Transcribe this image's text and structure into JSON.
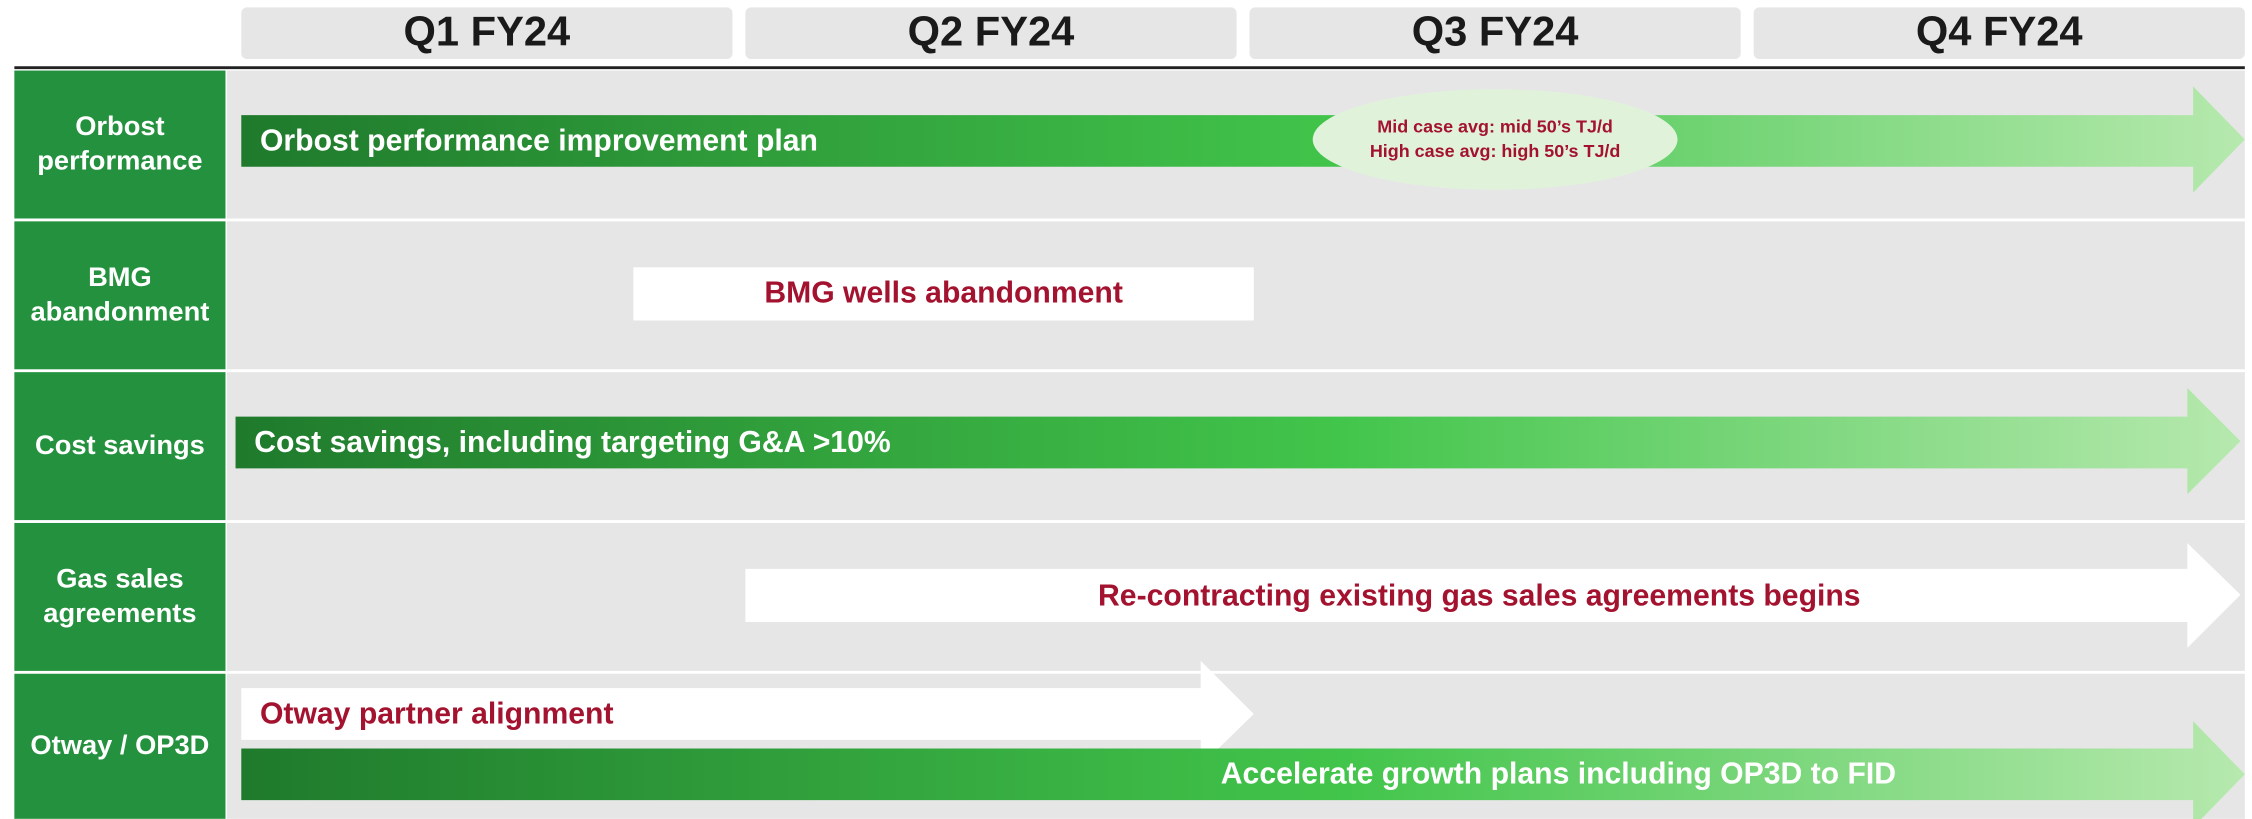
{
  "header": {
    "quarters": [
      "Q1 FY24",
      "Q2 FY24",
      "Q3 FY24",
      "Q4 FY24"
    ]
  },
  "rows": [
    {
      "label": "Orbost performance",
      "bars": [
        {
          "text": "Orbost performance improvement plan"
        }
      ],
      "annotation": [
        "Mid case avg: mid 50’s TJ/d",
        "High case avg: high 50’s TJ/d"
      ]
    },
    {
      "label": "BMG abandonment",
      "bars": [
        {
          "text": "BMG wells abandonment"
        }
      ]
    },
    {
      "label": "Cost savings",
      "bars": [
        {
          "text": "Cost savings, including targeting G&A >10%"
        }
      ]
    },
    {
      "label": "Gas sales agreements",
      "bars": [
        {
          "text": "Re-contracting existing gas sales agreements begins"
        }
      ]
    },
    {
      "label": "Otway / OP3D",
      "bars": [
        {
          "text": "Otway partner alignment"
        },
        {
          "text": "Accelerate growth plans including OP3D to FID"
        }
      ]
    }
  ]
}
